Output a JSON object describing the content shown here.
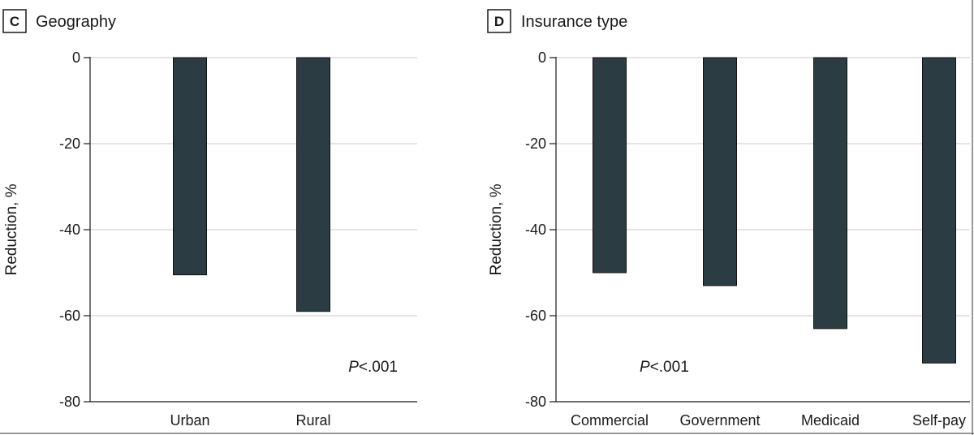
{
  "colors": {
    "bar": "#2b3d43",
    "axis": "#1a1a1a",
    "grid": "#c8c8c8"
  },
  "chart_data": [
    {
      "type": "bar",
      "panel_letter": "C",
      "title": "Geography",
      "ylabel": "Reduction, %",
      "xlabel": "",
      "categories": [
        "Urban",
        "Rural"
      ],
      "values": [
        -50.5,
        -59
      ],
      "ylim": [
        -80,
        0
      ],
      "yticks": [
        0,
        -20,
        -40,
        -60,
        -80
      ],
      "ytick_labels": [
        "0",
        "-20",
        "-40",
        "-60",
        "-80"
      ],
      "grid": true,
      "annotation": {
        "prefix": "P",
        "text": "<.001"
      }
    },
    {
      "type": "bar",
      "panel_letter": "D",
      "title": "Insurance type",
      "ylabel": "Reduction, %",
      "xlabel": "",
      "categories": [
        "Commercial",
        "Government",
        "Medicaid",
        "Self-pay"
      ],
      "values": [
        -50,
        -53,
        -63,
        -71
      ],
      "ylim": [
        -80,
        0
      ],
      "yticks": [
        0,
        -20,
        -40,
        -60,
        -80
      ],
      "ytick_labels": [
        "0",
        "-20",
        "-40",
        "-60",
        "-80"
      ],
      "grid": true,
      "annotation": {
        "prefix": "P",
        "text": "<.001"
      }
    }
  ]
}
